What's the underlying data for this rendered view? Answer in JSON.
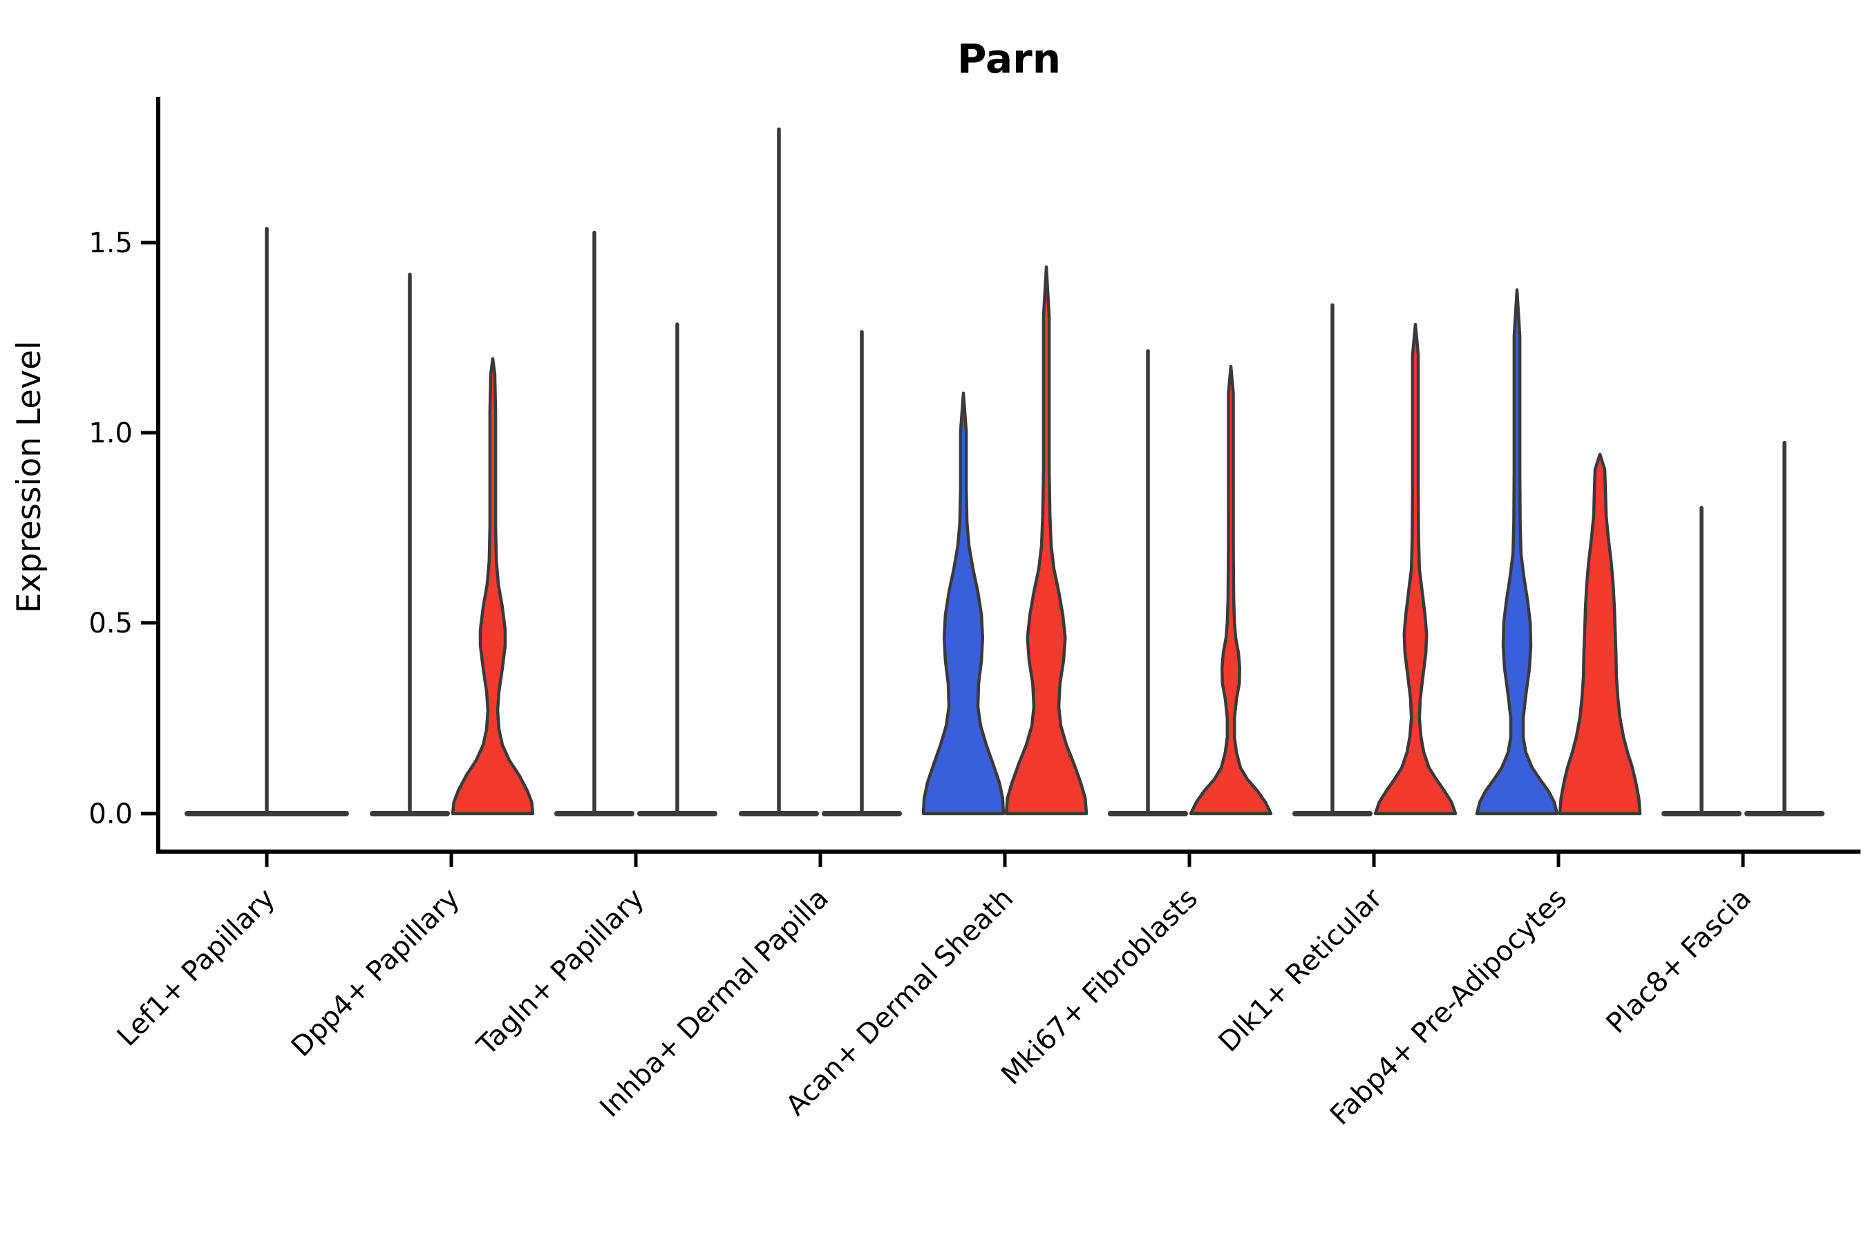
{
  "title": "Parn",
  "axis": {
    "ylabel": "Expression Level"
  },
  "chart_data": {
    "type": "violin",
    "title": "Parn",
    "xlabel": "",
    "ylabel": "Expression Level",
    "yticks": [
      0.0,
      0.5,
      1.0,
      1.5
    ],
    "ytick_labels": [
      "0.0",
      "0.5",
      "1.0",
      "1.5"
    ],
    "ylim": [
      -0.06,
      1.87
    ],
    "grid": false,
    "legend": "none",
    "colors": {
      "blue": "#3A5FDB",
      "red": "#F23B2E",
      "outline": "#3A3A3A"
    },
    "categories": [
      {
        "label": "Lef1+ Papillary",
        "violins": [
          {
            "position": "full",
            "color": "plain",
            "shape": "spike",
            "max": 1.53,
            "base_rel": 2.05
          }
        ]
      },
      {
        "label": "Dpp4+ Papillary",
        "violins": [
          {
            "position": "left",
            "color": "plain",
            "shape": "spike",
            "max": 1.41,
            "base_rel": 1.0
          },
          {
            "position": "right",
            "color": "red",
            "shape": "density",
            "max": 1.19,
            "profile": [
              [
                0,
                1.0
              ],
              [
                0.03,
                0.97
              ],
              [
                0.06,
                0.86
              ],
              [
                0.1,
                0.66
              ],
              [
                0.14,
                0.41
              ],
              [
                0.18,
                0.24
              ],
              [
                0.22,
                0.155
              ],
              [
                0.27,
                0.12
              ],
              [
                0.32,
                0.155
              ],
              [
                0.38,
                0.24
              ],
              [
                0.44,
                0.31
              ],
              [
                0.48,
                0.31
              ],
              [
                0.54,
                0.24
              ],
              [
                0.6,
                0.14
              ],
              [
                0.66,
                0.09
              ],
              [
                0.75,
                0.07
              ],
              [
                0.9,
                0.07
              ],
              [
                1.05,
                0.07
              ],
              [
                1.15,
                0.05
              ],
              [
                1.19,
                0
              ]
            ]
          }
        ]
      },
      {
        "label": "Tagln+ Papillary",
        "violins": [
          {
            "position": "left",
            "color": "plain",
            "shape": "spike",
            "max": 1.52,
            "base_rel": 1.0
          },
          {
            "position": "right",
            "color": "plain",
            "shape": "spike",
            "max": 1.28,
            "base_rel": 1.0
          }
        ]
      },
      {
        "label": "Inhba+ Dermal Papilla",
        "violins": [
          {
            "position": "left",
            "color": "plain",
            "shape": "spike",
            "max": 1.79,
            "base_rel": 1.0
          },
          {
            "position": "right",
            "color": "plain",
            "shape": "spike",
            "max": 1.26,
            "base_rel": 1.0
          }
        ]
      },
      {
        "label": "Acan+ Dermal Sheath",
        "violins": [
          {
            "position": "left",
            "color": "blue",
            "shape": "density",
            "max": 1.1,
            "profile": [
              [
                0,
                1.0
              ],
              [
                0.04,
                0.98
              ],
              [
                0.08,
                0.9
              ],
              [
                0.13,
                0.74
              ],
              [
                0.18,
                0.57
              ],
              [
                0.23,
                0.43
              ],
              [
                0.28,
                0.36
              ],
              [
                0.34,
                0.38
              ],
              [
                0.4,
                0.45
              ],
              [
                0.46,
                0.48
              ],
              [
                0.52,
                0.45
              ],
              [
                0.58,
                0.36
              ],
              [
                0.64,
                0.24
              ],
              [
                0.7,
                0.14
              ],
              [
                0.76,
                0.09
              ],
              [
                0.85,
                0.07
              ],
              [
                1.0,
                0.07
              ],
              [
                1.1,
                0
              ]
            ]
          },
          {
            "position": "right",
            "color": "red",
            "shape": "density",
            "max": 1.43,
            "profile": [
              [
                0,
                1.0
              ],
              [
                0.04,
                0.97
              ],
              [
                0.08,
                0.86
              ],
              [
                0.13,
                0.69
              ],
              [
                0.18,
                0.5
              ],
              [
                0.23,
                0.36
              ],
              [
                0.28,
                0.31
              ],
              [
                0.34,
                0.34
              ],
              [
                0.4,
                0.43
              ],
              [
                0.46,
                0.47
              ],
              [
                0.52,
                0.41
              ],
              [
                0.58,
                0.31
              ],
              [
                0.64,
                0.19
              ],
              [
                0.7,
                0.12
              ],
              [
                0.78,
                0.09
              ],
              [
                0.9,
                0.07
              ],
              [
                1.1,
                0.07
              ],
              [
                1.3,
                0.07
              ],
              [
                1.43,
                0
              ]
            ]
          }
        ]
      },
      {
        "label": "Mki67+ Fibroblasts",
        "violins": [
          {
            "position": "left",
            "color": "plain",
            "shape": "spike",
            "max": 1.21,
            "base_rel": 1.0
          },
          {
            "position": "right",
            "color": "red",
            "shape": "density",
            "max": 1.17,
            "profile": [
              [
                0,
                1.0
              ],
              [
                0.03,
                0.86
              ],
              [
                0.06,
                0.66
              ],
              [
                0.09,
                0.41
              ],
              [
                0.12,
                0.24
              ],
              [
                0.16,
                0.14
              ],
              [
                0.2,
                0.09
              ],
              [
                0.25,
                0.09
              ],
              [
                0.3,
                0.14
              ],
              [
                0.34,
                0.21
              ],
              [
                0.38,
                0.22
              ],
              [
                0.42,
                0.19
              ],
              [
                0.46,
                0.12
              ],
              [
                0.5,
                0.09
              ],
              [
                0.56,
                0.07
              ],
              [
                0.7,
                0.06
              ],
              [
                0.9,
                0.06
              ],
              [
                1.1,
                0.06
              ],
              [
                1.17,
                0
              ]
            ]
          }
        ]
      },
      {
        "label": "Dlk1+ Reticular",
        "violins": [
          {
            "position": "left",
            "color": "plain",
            "shape": "spike",
            "max": 1.33,
            "base_rel": 1.0
          },
          {
            "position": "right",
            "color": "red",
            "shape": "density",
            "max": 1.28,
            "profile": [
              [
                0,
                1.0
              ],
              [
                0.03,
                0.9
              ],
              [
                0.06,
                0.72
              ],
              [
                0.09,
                0.52
              ],
              [
                0.12,
                0.34
              ],
              [
                0.16,
                0.21
              ],
              [
                0.2,
                0.14
              ],
              [
                0.25,
                0.1
              ],
              [
                0.3,
                0.12
              ],
              [
                0.36,
                0.19
              ],
              [
                0.42,
                0.26
              ],
              [
                0.47,
                0.28
              ],
              [
                0.52,
                0.24
              ],
              [
                0.58,
                0.17
              ],
              [
                0.64,
                0.1
              ],
              [
                0.72,
                0.08
              ],
              [
                0.85,
                0.07
              ],
              [
                1.05,
                0.07
              ],
              [
                1.2,
                0.07
              ],
              [
                1.28,
                0
              ]
            ]
          }
        ]
      },
      {
        "label": "Fabp4+ Pre-Adipocytes",
        "violins": [
          {
            "position": "left",
            "color": "blue",
            "shape": "density",
            "max": 1.37,
            "profile": [
              [
                0,
                1.0
              ],
              [
                0.03,
                0.93
              ],
              [
                0.06,
                0.78
              ],
              [
                0.09,
                0.57
              ],
              [
                0.12,
                0.38
              ],
              [
                0.16,
                0.22
              ],
              [
                0.2,
                0.155
              ],
              [
                0.25,
                0.155
              ],
              [
                0.31,
                0.22
              ],
              [
                0.38,
                0.31
              ],
              [
                0.44,
                0.345
              ],
              [
                0.5,
                0.33
              ],
              [
                0.56,
                0.26
              ],
              [
                0.62,
                0.17
              ],
              [
                0.68,
                0.1
              ],
              [
                0.76,
                0.08
              ],
              [
                0.9,
                0.07
              ],
              [
                1.1,
                0.07
              ],
              [
                1.25,
                0.07
              ],
              [
                1.37,
                0
              ]
            ]
          },
          {
            "position": "right",
            "color": "red",
            "shape": "density",
            "max": 0.94,
            "profile": [
              [
                0,
                1.0
              ],
              [
                0.04,
                0.97
              ],
              [
                0.08,
                0.9
              ],
              [
                0.12,
                0.81
              ],
              [
                0.16,
                0.69
              ],
              [
                0.2,
                0.59
              ],
              [
                0.25,
                0.5
              ],
              [
                0.3,
                0.45
              ],
              [
                0.36,
                0.41
              ],
              [
                0.42,
                0.4
              ],
              [
                0.48,
                0.38
              ],
              [
                0.54,
                0.36
              ],
              [
                0.6,
                0.33
              ],
              [
                0.66,
                0.28
              ],
              [
                0.72,
                0.21
              ],
              [
                0.78,
                0.155
              ],
              [
                0.84,
                0.14
              ],
              [
                0.9,
                0.12
              ],
              [
                0.94,
                0
              ]
            ]
          }
        ]
      },
      {
        "label": "Plac8+ Fascia",
        "violins": [
          {
            "position": "left",
            "color": "plain",
            "shape": "spike",
            "max": 0.8,
            "base_rel": 1.0
          },
          {
            "position": "right",
            "color": "plain",
            "shape": "spike",
            "max": 0.97,
            "base_rel": 1.0
          }
        ]
      }
    ]
  }
}
